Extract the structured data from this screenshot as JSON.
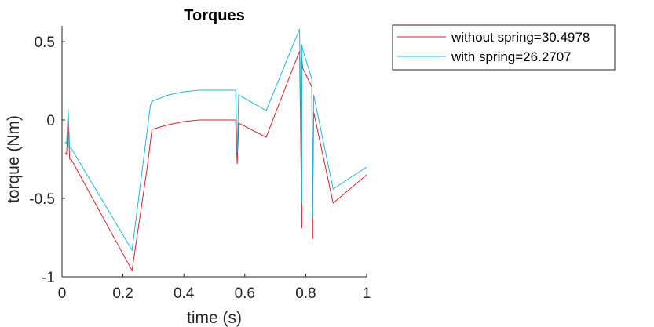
{
  "chart_data": {
    "type": "line",
    "title": "Torques",
    "xlabel": "time (s)",
    "ylabel": "torque (Nm)",
    "xlim": [
      0,
      1
    ],
    "ylim": [
      -1,
      0.6
    ],
    "xticks": [
      0,
      0.2,
      0.4,
      0.6,
      0.8,
      1
    ],
    "xtick_labels": [
      "0",
      "0.2",
      "0.4",
      "0.6",
      "0.8",
      "1"
    ],
    "yticks": [
      -1,
      -0.5,
      0,
      0.5
    ],
    "ytick_labels": [
      "-1",
      "-0.5",
      "0",
      "0.5"
    ],
    "grid": false,
    "legend_position": "outside-right",
    "series": [
      {
        "name": "without spring=30.4978",
        "color": "#d9212a",
        "x": [
          0.01,
          0.015,
          0.02,
          0.025,
          0.03,
          0.23,
          0.28,
          0.295,
          0.35,
          0.4,
          0.45,
          0.5,
          0.57,
          0.57,
          0.575,
          0.58,
          0.67,
          0.78,
          0.787,
          0.787,
          0.79,
          0.82,
          0.823,
          0.823,
          0.826,
          0.89,
          1.0
        ],
        "y": [
          -0.21,
          -0.22,
          0.0,
          -0.25,
          -0.25,
          -0.96,
          -0.3,
          -0.06,
          -0.03,
          -0.01,
          0.0,
          0.0,
          0.0,
          -0.02,
          -0.28,
          -0.02,
          -0.11,
          0.44,
          -0.69,
          0.4,
          0.33,
          0.21,
          -0.76,
          -0.55,
          0.05,
          -0.53,
          -0.35
        ]
      },
      {
        "name": "with spring=26.2707",
        "color": "#1fb6d9",
        "x": [
          0.01,
          0.015,
          0.02,
          0.025,
          0.03,
          0.23,
          0.29,
          0.295,
          0.35,
          0.4,
          0.45,
          0.5,
          0.57,
          0.57,
          0.575,
          0.58,
          0.67,
          0.78,
          0.787,
          0.787,
          0.79,
          0.82,
          0.823,
          0.823,
          0.826,
          0.89,
          1.0
        ],
        "y": [
          -0.14,
          -0.15,
          0.07,
          -0.18,
          -0.18,
          -0.83,
          0.09,
          0.12,
          0.16,
          0.18,
          0.19,
          0.19,
          0.19,
          0.16,
          -0.21,
          0.16,
          0.06,
          0.58,
          -0.53,
          0.48,
          0.45,
          0.26,
          -0.62,
          -0.41,
          0.16,
          -0.44,
          -0.3
        ]
      }
    ]
  }
}
